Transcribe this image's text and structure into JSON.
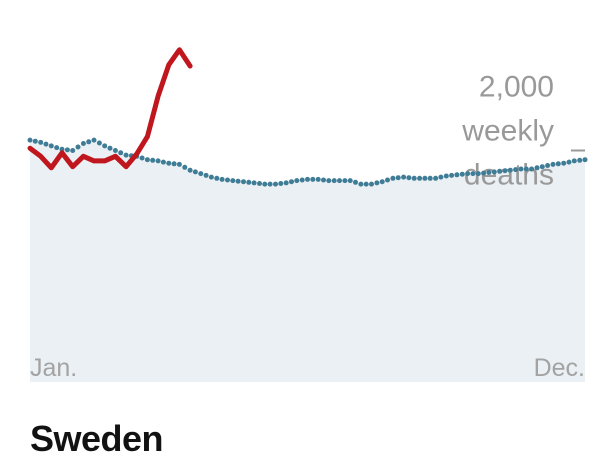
{
  "chart_data": {
    "type": "line",
    "title": "Sweden",
    "xlabel": "",
    "ylabel": "",
    "x_tick_labels": [
      "Jan.",
      "Dec."
    ],
    "annotation": {
      "value": 2000,
      "lines": [
        "2,000",
        "weekly",
        "deaths"
      ]
    },
    "ylim": [
      0,
      3300
    ],
    "x_range": [
      1,
      53
    ],
    "grid": false,
    "legend": "none",
    "colors": {
      "current": "#c0161e",
      "expected": "#3f7c96",
      "area": "#eaf0f3",
      "ticks": "#a3a3a3",
      "annotation": "#999999"
    },
    "series": [
      {
        "style": "solid",
        "x": [
          1,
          2,
          3,
          4,
          5,
          6,
          7,
          8,
          9,
          10,
          11,
          12,
          13,
          14,
          15,
          16
        ],
        "values": [
          2020,
          1950,
          1850,
          1980,
          1860,
          1950,
          1910,
          1910,
          1950,
          1860,
          1970,
          2120,
          2470,
          2740,
          2870,
          2730
        ]
      },
      {
        "style": "dotted",
        "x": [
          1,
          2,
          3,
          4,
          5,
          6,
          7,
          8,
          9,
          10,
          11,
          12,
          13,
          14,
          15,
          16,
          17,
          18,
          19,
          20,
          21,
          22,
          23,
          24,
          25,
          26,
          27,
          28,
          29,
          30,
          31,
          32,
          33,
          34,
          35,
          36,
          37,
          38,
          39,
          40,
          41,
          42,
          43,
          44,
          45,
          46,
          47,
          48,
          49,
          50,
          51,
          52,
          53
        ],
        "values": [
          2090,
          2070,
          2040,
          2010,
          2000,
          2060,
          2090,
          2040,
          2000,
          1960,
          1950,
          1920,
          1910,
          1890,
          1880,
          1830,
          1800,
          1770,
          1750,
          1740,
          1730,
          1720,
          1710,
          1710,
          1720,
          1740,
          1750,
          1750,
          1740,
          1740,
          1740,
          1710,
          1710,
          1730,
          1760,
          1770,
          1760,
          1760,
          1760,
          1780,
          1790,
          1800,
          1800,
          1810,
          1820,
          1830,
          1840,
          1840,
          1860,
          1880,
          1890,
          1910,
          1920
        ]
      }
    ]
  }
}
